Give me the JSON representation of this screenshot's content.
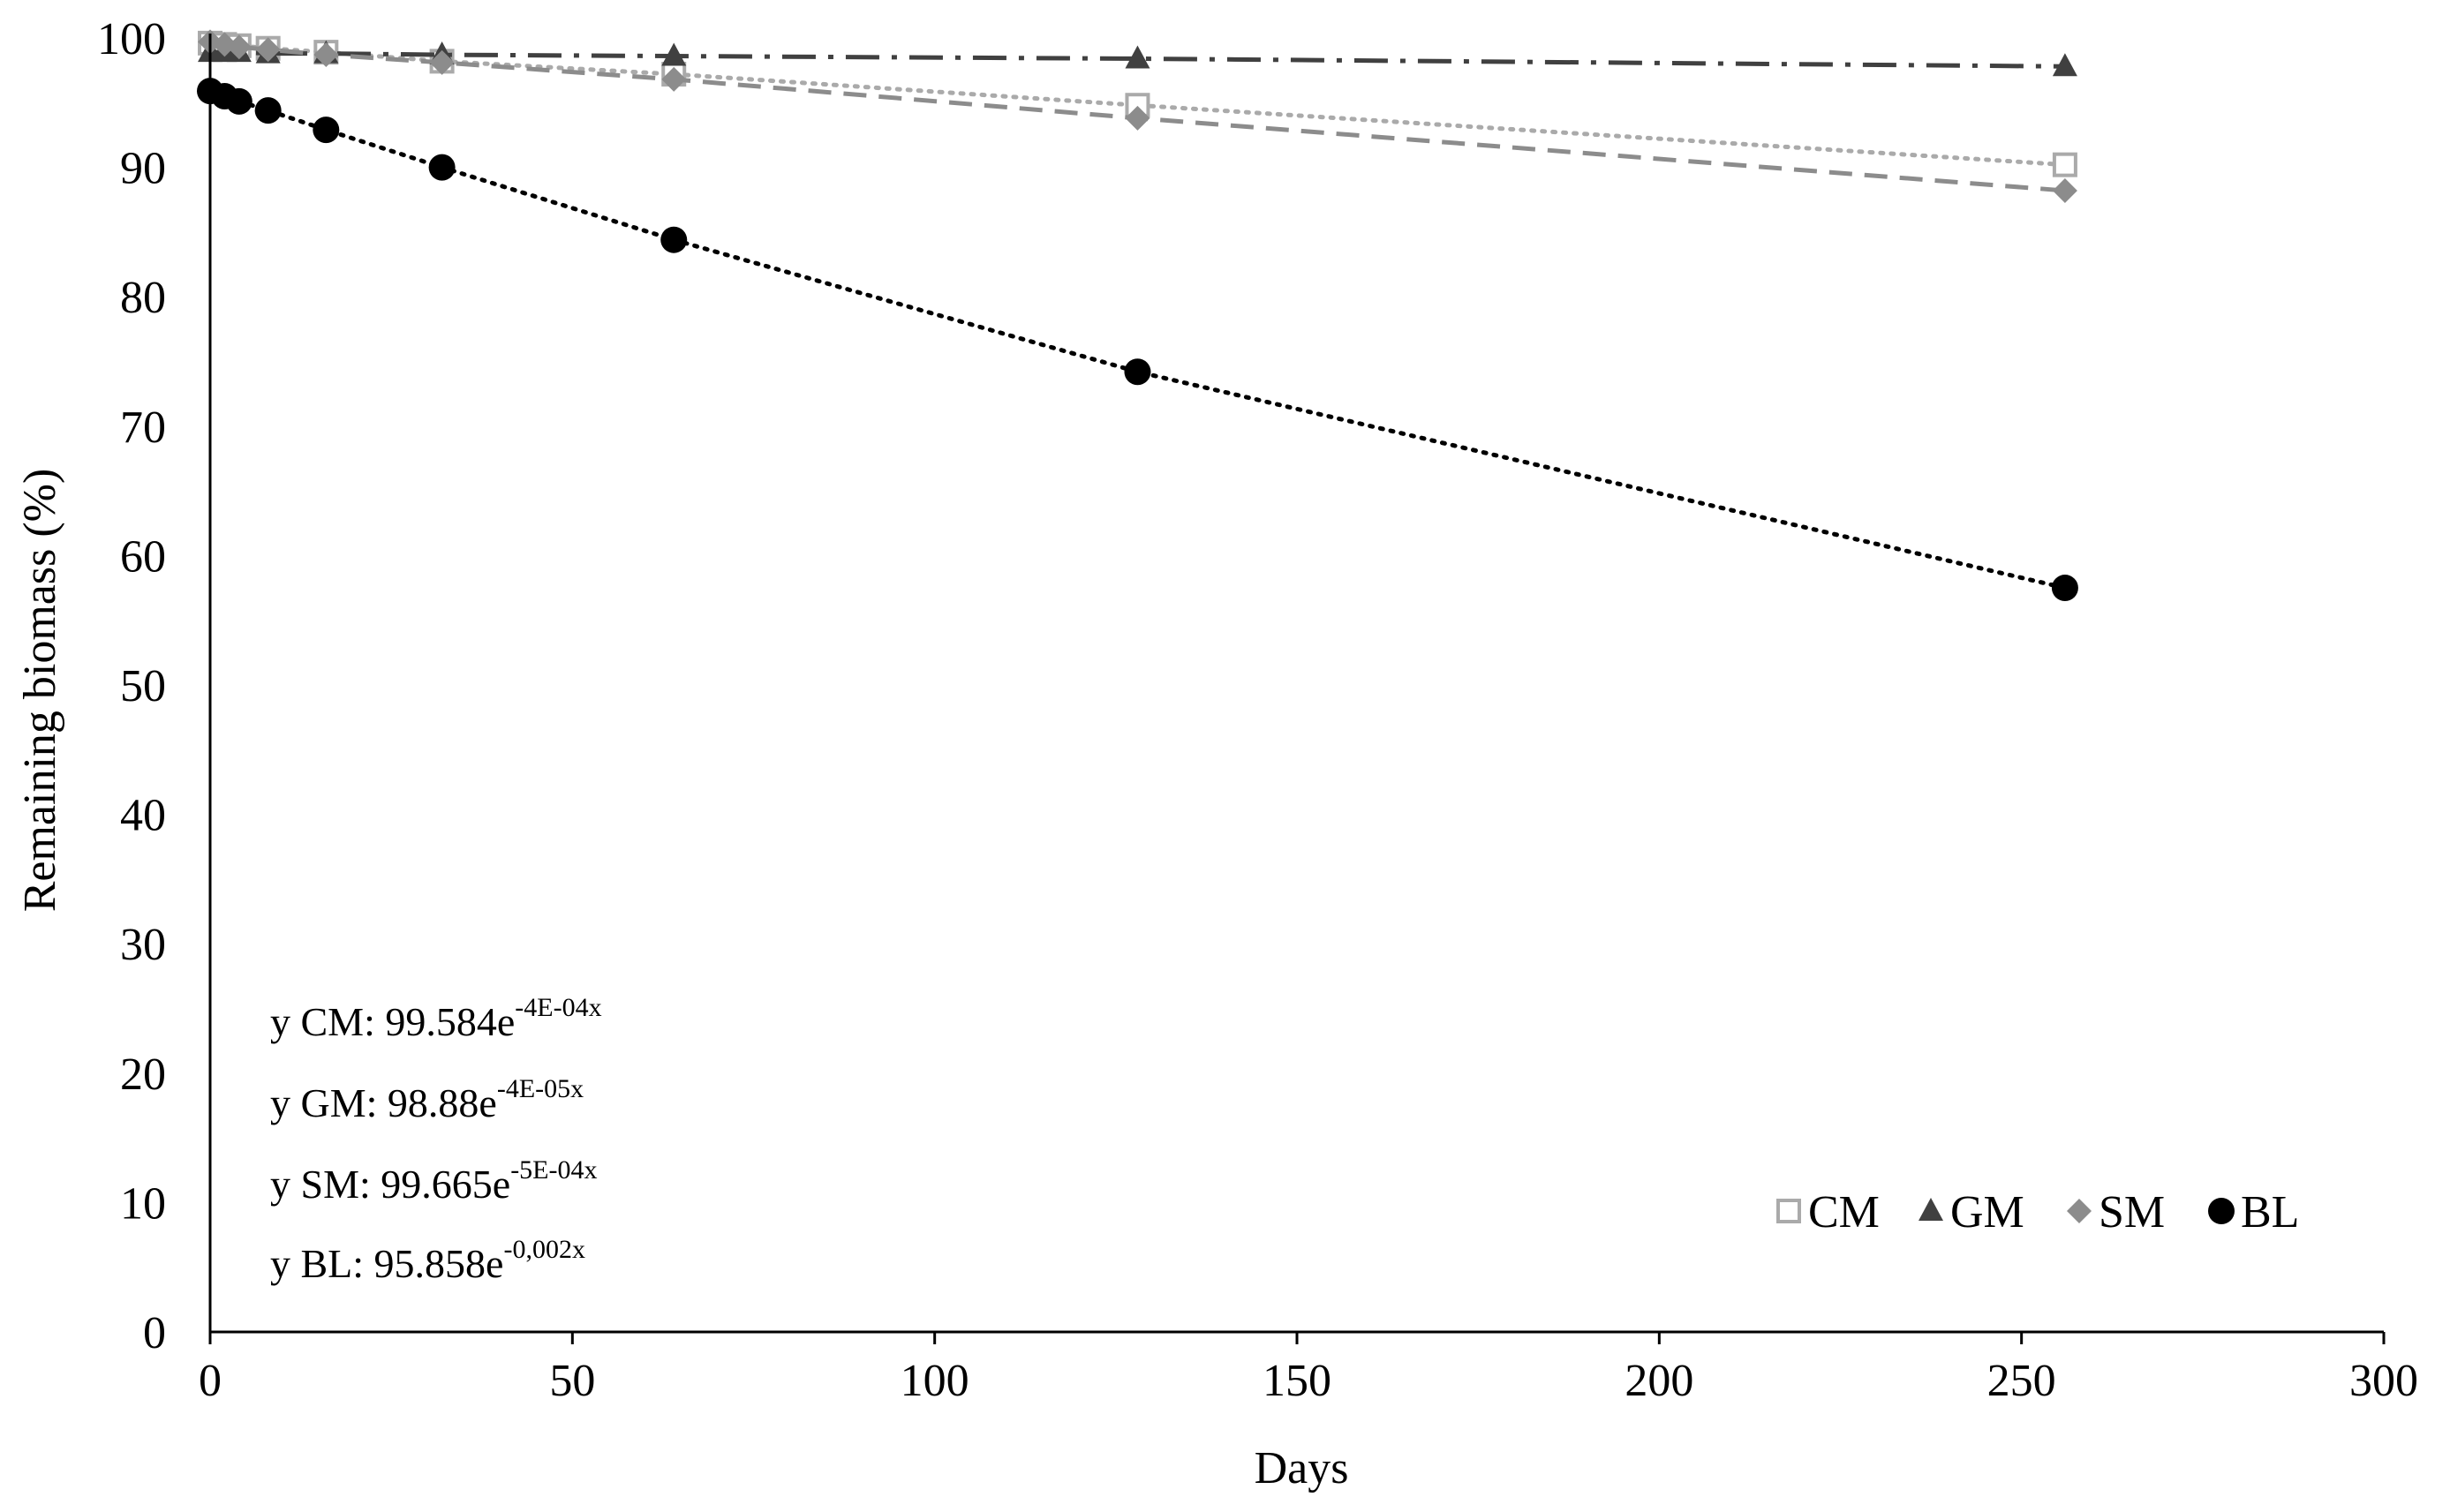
{
  "chart_data": {
    "type": "line",
    "title": "",
    "xlabel": "Days",
    "ylabel": "Remaining biomass (%)",
    "xlim": [
      0,
      300
    ],
    "ylim": [
      0,
      100
    ],
    "xticks": [
      0,
      50,
      100,
      150,
      200,
      250,
      300
    ],
    "yticks": [
      0,
      10,
      20,
      30,
      40,
      50,
      60,
      70,
      80,
      90,
      100
    ],
    "grid": false,
    "legend_position": "bottom-right",
    "x": [
      0,
      2,
      4,
      8,
      16,
      32,
      64,
      128,
      256
    ],
    "series": [
      {
        "name": "CM",
        "marker": "open-square",
        "line_style": "dotted",
        "color": "#aaaaaa",
        "values": [
          99.6,
          99.5,
          99.4,
          99.2,
          98.9,
          98.2,
          97.2,
          94.8,
          90.2
        ]
      },
      {
        "name": "GM",
        "marker": "triangle",
        "line_style": "dash-dot",
        "color": "#404040",
        "values": [
          98.9,
          98.9,
          98.9,
          98.8,
          98.8,
          98.7,
          98.6,
          98.4,
          97.8
        ]
      },
      {
        "name": "SM",
        "marker": "diamond",
        "line_style": "dashed",
        "color": "#8c8c8c",
        "values": [
          99.7,
          99.5,
          99.3,
          99.1,
          98.7,
          98.1,
          96.8,
          93.8,
          88.2
        ]
      },
      {
        "name": "BL",
        "marker": "filled-circle",
        "line_style": "dotted",
        "color": "#000000",
        "values": [
          95.9,
          95.5,
          95.1,
          94.4,
          92.9,
          90.0,
          84.4,
          74.2,
          57.5
        ]
      }
    ],
    "annotations": [
      {
        "prefix": "y CM: 99.584e",
        "exponent": "-4E-04x"
      },
      {
        "prefix": "y GM: 98.88e",
        "exponent": "-4E-05x"
      },
      {
        "prefix": "y SM: 99.665e",
        "exponent": "-5E-04x"
      },
      {
        "prefix": "y BL: 95.858e",
        "exponent": "-0,002x"
      }
    ]
  }
}
